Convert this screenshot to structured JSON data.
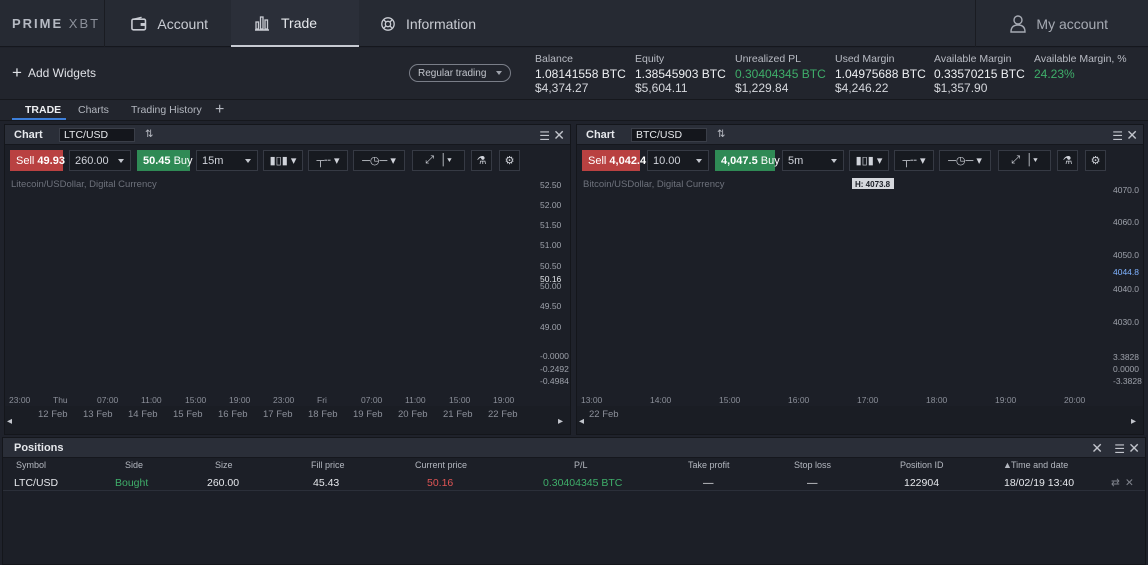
{
  "logo": {
    "a": "PRIME",
    "b": "XBT"
  },
  "nav": {
    "account": "Account",
    "trade": "Trade",
    "information": "Information",
    "my_account": "My account"
  },
  "widgets": {
    "add": "Add Widgets",
    "mode": "Regular trading"
  },
  "stats": [
    {
      "label": "Balance",
      "v1": "1.08141558 BTC",
      "v2": "$4,374.27"
    },
    {
      "label": "Equity",
      "v1": "1.38545903 BTC",
      "v2": "$5,604.11"
    },
    {
      "label": "Unrealized PL",
      "v1": "0.30404345 BTC",
      "v2": "$1,229.84"
    },
    {
      "label": "Used Margin",
      "v1": "1.04975688 BTC",
      "v2": "$4,246.22"
    },
    {
      "label": "Available Margin",
      "v1": "0.33570215 BTC",
      "v2": "$1,357.90"
    },
    {
      "label": "Available Margin, %",
      "v1": "24.23%",
      "v2": ""
    }
  ],
  "tabs": [
    "TRADE",
    "Charts",
    "Trading History"
  ],
  "charts": [
    {
      "title": "Chart",
      "symbol": "LTC/USD",
      "sell_label": "Sell",
      "sell": "49.93",
      "qty": "260.00",
      "buy": "50.45",
      "buy_label": "Buy",
      "interval": "15m",
      "desc": "Litecoin/USDollar, Digital Currency",
      "y_ticks": [
        "52.50",
        "52.00",
        "51.50",
        "51.00",
        "50.50",
        "50.16",
        "50.00",
        "49.50",
        "49.00"
      ],
      "macd_ticks": [
        "-0.0000",
        "-0.2492",
        "-0.4984"
      ],
      "x_ticks": [
        "23:00",
        "Thu",
        "07:00",
        "11:00",
        "15:00",
        "19:00",
        "23:00",
        "Fri",
        "07:00",
        "11:00",
        "15:00",
        "19:00"
      ],
      "dates": [
        "12 Feb",
        "13 Feb",
        "14 Feb",
        "15 Feb",
        "16 Feb",
        "17 Feb",
        "18 Feb",
        "19 Feb",
        "20 Feb",
        "21 Feb",
        "22 Feb"
      ]
    },
    {
      "title": "Chart",
      "symbol": "BTC/USD",
      "sell_label": "Sell",
      "sell": "4,042.4",
      "qty": "10.00",
      "buy": "4,047.5",
      "buy_label": "Buy",
      "interval": "5m",
      "desc": "Bitcoin/USDollar, Digital Currency",
      "high": "H: 4073.8",
      "y_ticks": [
        "4070.0",
        "4060.0",
        "4050.0",
        "4044.8",
        "4040.0",
        "4030.0"
      ],
      "macd_ticks": [
        "3.3828",
        "0.0000",
        "-3.3828"
      ],
      "x_ticks": [
        "13:00",
        "14:00",
        "15:00",
        "16:00",
        "17:00",
        "18:00",
        "19:00",
        "20:00"
      ],
      "dates": [
        "22 Feb"
      ]
    }
  ],
  "positions": {
    "title": "Positions",
    "cols": [
      "Symbol",
      "Side",
      "Size",
      "Fill price",
      "Current price",
      "P/L",
      "Take profit",
      "Stop loss",
      "Position ID",
      "Time and date"
    ],
    "row": {
      "symbol": "LTC/USD",
      "side": "Bought",
      "size": "260.00",
      "fill": "45.43",
      "current": "50.16",
      "pl": "0.30404345 BTC",
      "tp": "—",
      "sl": "—",
      "id": "122904",
      "time": "18/02/19 13:40"
    }
  },
  "colors": {
    "green": "#3fae6a",
    "red": "#e05555",
    "accent": "#3d7fd9"
  }
}
